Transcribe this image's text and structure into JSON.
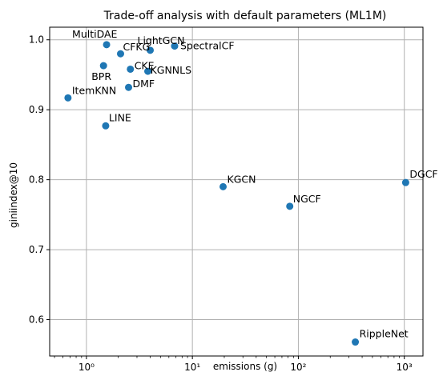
{
  "chart_data": {
    "type": "scatter",
    "title": "Trade-off analysis with default parameters (ML1M)",
    "xlabel": "emissions (g)",
    "ylabel": "giniindex@10",
    "xscale": "log",
    "xlim": [
      0.45,
      1500
    ],
    "ylim": [
      0.548,
      1.018
    ],
    "grid": true,
    "marker_color": "#1f77b4",
    "xticks": [
      {
        "value": 1,
        "label": "10⁰"
      },
      {
        "value": 10,
        "label": "10¹"
      },
      {
        "value": 100,
        "label": "10²"
      },
      {
        "value": 1000,
        "label": "10³"
      }
    ],
    "yticks": [
      {
        "value": 0.6,
        "label": "0.6"
      },
      {
        "value": 0.7,
        "label": "0.7"
      },
      {
        "value": 0.8,
        "label": "0.8"
      },
      {
        "value": 0.9,
        "label": "0.9"
      },
      {
        "value": 1.0,
        "label": "1.0"
      }
    ],
    "points": [
      {
        "label": "MultiDAE",
        "x": 1.55,
        "y": 0.993
      },
      {
        "label": "CFKG",
        "x": 2.1,
        "y": 0.98
      },
      {
        "label": "LightGCN",
        "x": 4.0,
        "y": 0.985
      },
      {
        "label": "SpectralCF",
        "x": 6.8,
        "y": 0.991
      },
      {
        "label": "BPR",
        "x": 1.45,
        "y": 0.963
      },
      {
        "label": "CKE",
        "x": 2.6,
        "y": 0.958
      },
      {
        "label": "KGNNLS",
        "x": 3.8,
        "y": 0.955
      },
      {
        "label": "DMF",
        "x": 2.5,
        "y": 0.932
      },
      {
        "label": "ItemKNN",
        "x": 0.67,
        "y": 0.917
      },
      {
        "label": "LINE",
        "x": 1.52,
        "y": 0.877
      },
      {
        "label": "KGCN",
        "x": 19.5,
        "y": 0.79
      },
      {
        "label": "NGCF",
        "x": 83,
        "y": 0.762
      },
      {
        "label": "DGCF",
        "x": 1030,
        "y": 0.796
      },
      {
        "label": "RippleNet",
        "x": 345,
        "y": 0.568
      }
    ]
  }
}
